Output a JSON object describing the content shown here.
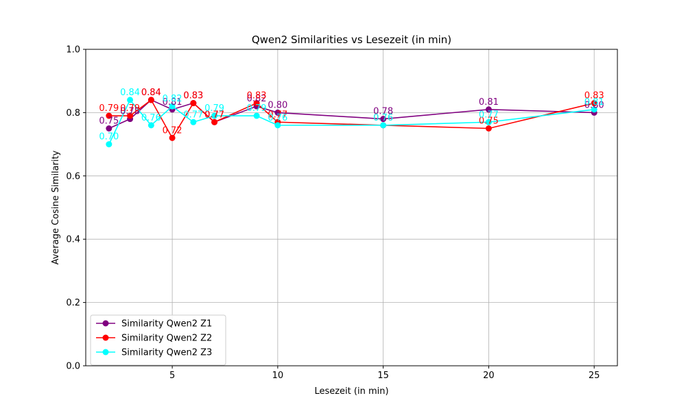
{
  "chart_data": {
    "type": "line",
    "title": "Qwen2 Similarities vs Lesezeit (in min)",
    "xlabel": "Lesezeit (in min)",
    "ylabel": "Average Cosine Similarity",
    "xlim": [
      0.9,
      26.1
    ],
    "ylim": [
      0.0,
      1.0
    ],
    "xticks": [
      5,
      10,
      15,
      20,
      25
    ],
    "xtick_labels": [
      "5",
      "10",
      "15",
      "20",
      "25"
    ],
    "yticks": [
      0.0,
      0.2,
      0.4,
      0.6,
      0.8,
      1.0
    ],
    "ytick_labels": [
      "0.0",
      "0.2",
      "0.4",
      "0.6",
      "0.8",
      "1.0"
    ],
    "grid": true,
    "legend_position": "lower-left",
    "x": [
      2,
      3,
      4,
      5,
      6,
      7,
      9,
      10,
      15,
      20,
      25
    ],
    "series": [
      {
        "name": "Similarity Qwen2 Z1",
        "color": "#800080",
        "values": [
          0.75,
          0.78,
          0.84,
          0.81,
          0.83,
          0.77,
          0.82,
          0.8,
          0.78,
          0.81,
          0.8
        ],
        "labels": [
          "0.75",
          "0.78",
          "0.84",
          "0.81",
          "0.83",
          "0.77",
          "0.82",
          "0.80",
          "0.78",
          "0.81",
          "0.80"
        ]
      },
      {
        "name": "Similarity Qwen2 Z2",
        "color": "#ff0000",
        "values": [
          0.79,
          0.79,
          0.84,
          0.72,
          0.83,
          0.77,
          0.83,
          0.77,
          0.76,
          0.75,
          0.83
        ],
        "labels": [
          "0.79",
          "0.79",
          "0.84",
          "0.72",
          "0.83",
          "0.77",
          "0.83",
          "0.77",
          "0.76",
          "0.75",
          "0.83"
        ]
      },
      {
        "name": "Similarity Qwen2 Z3",
        "color": "#00ffff",
        "values": [
          0.7,
          0.84,
          0.76,
          0.82,
          0.77,
          0.79,
          0.79,
          0.76,
          0.76,
          0.77,
          0.81
        ],
        "labels": [
          "0.70",
          "0.84",
          "0.76",
          "0.82",
          "0.77",
          "0.79",
          "0.79",
          "0.76",
          "0.76",
          "0.77",
          "0.81"
        ]
      }
    ]
  }
}
